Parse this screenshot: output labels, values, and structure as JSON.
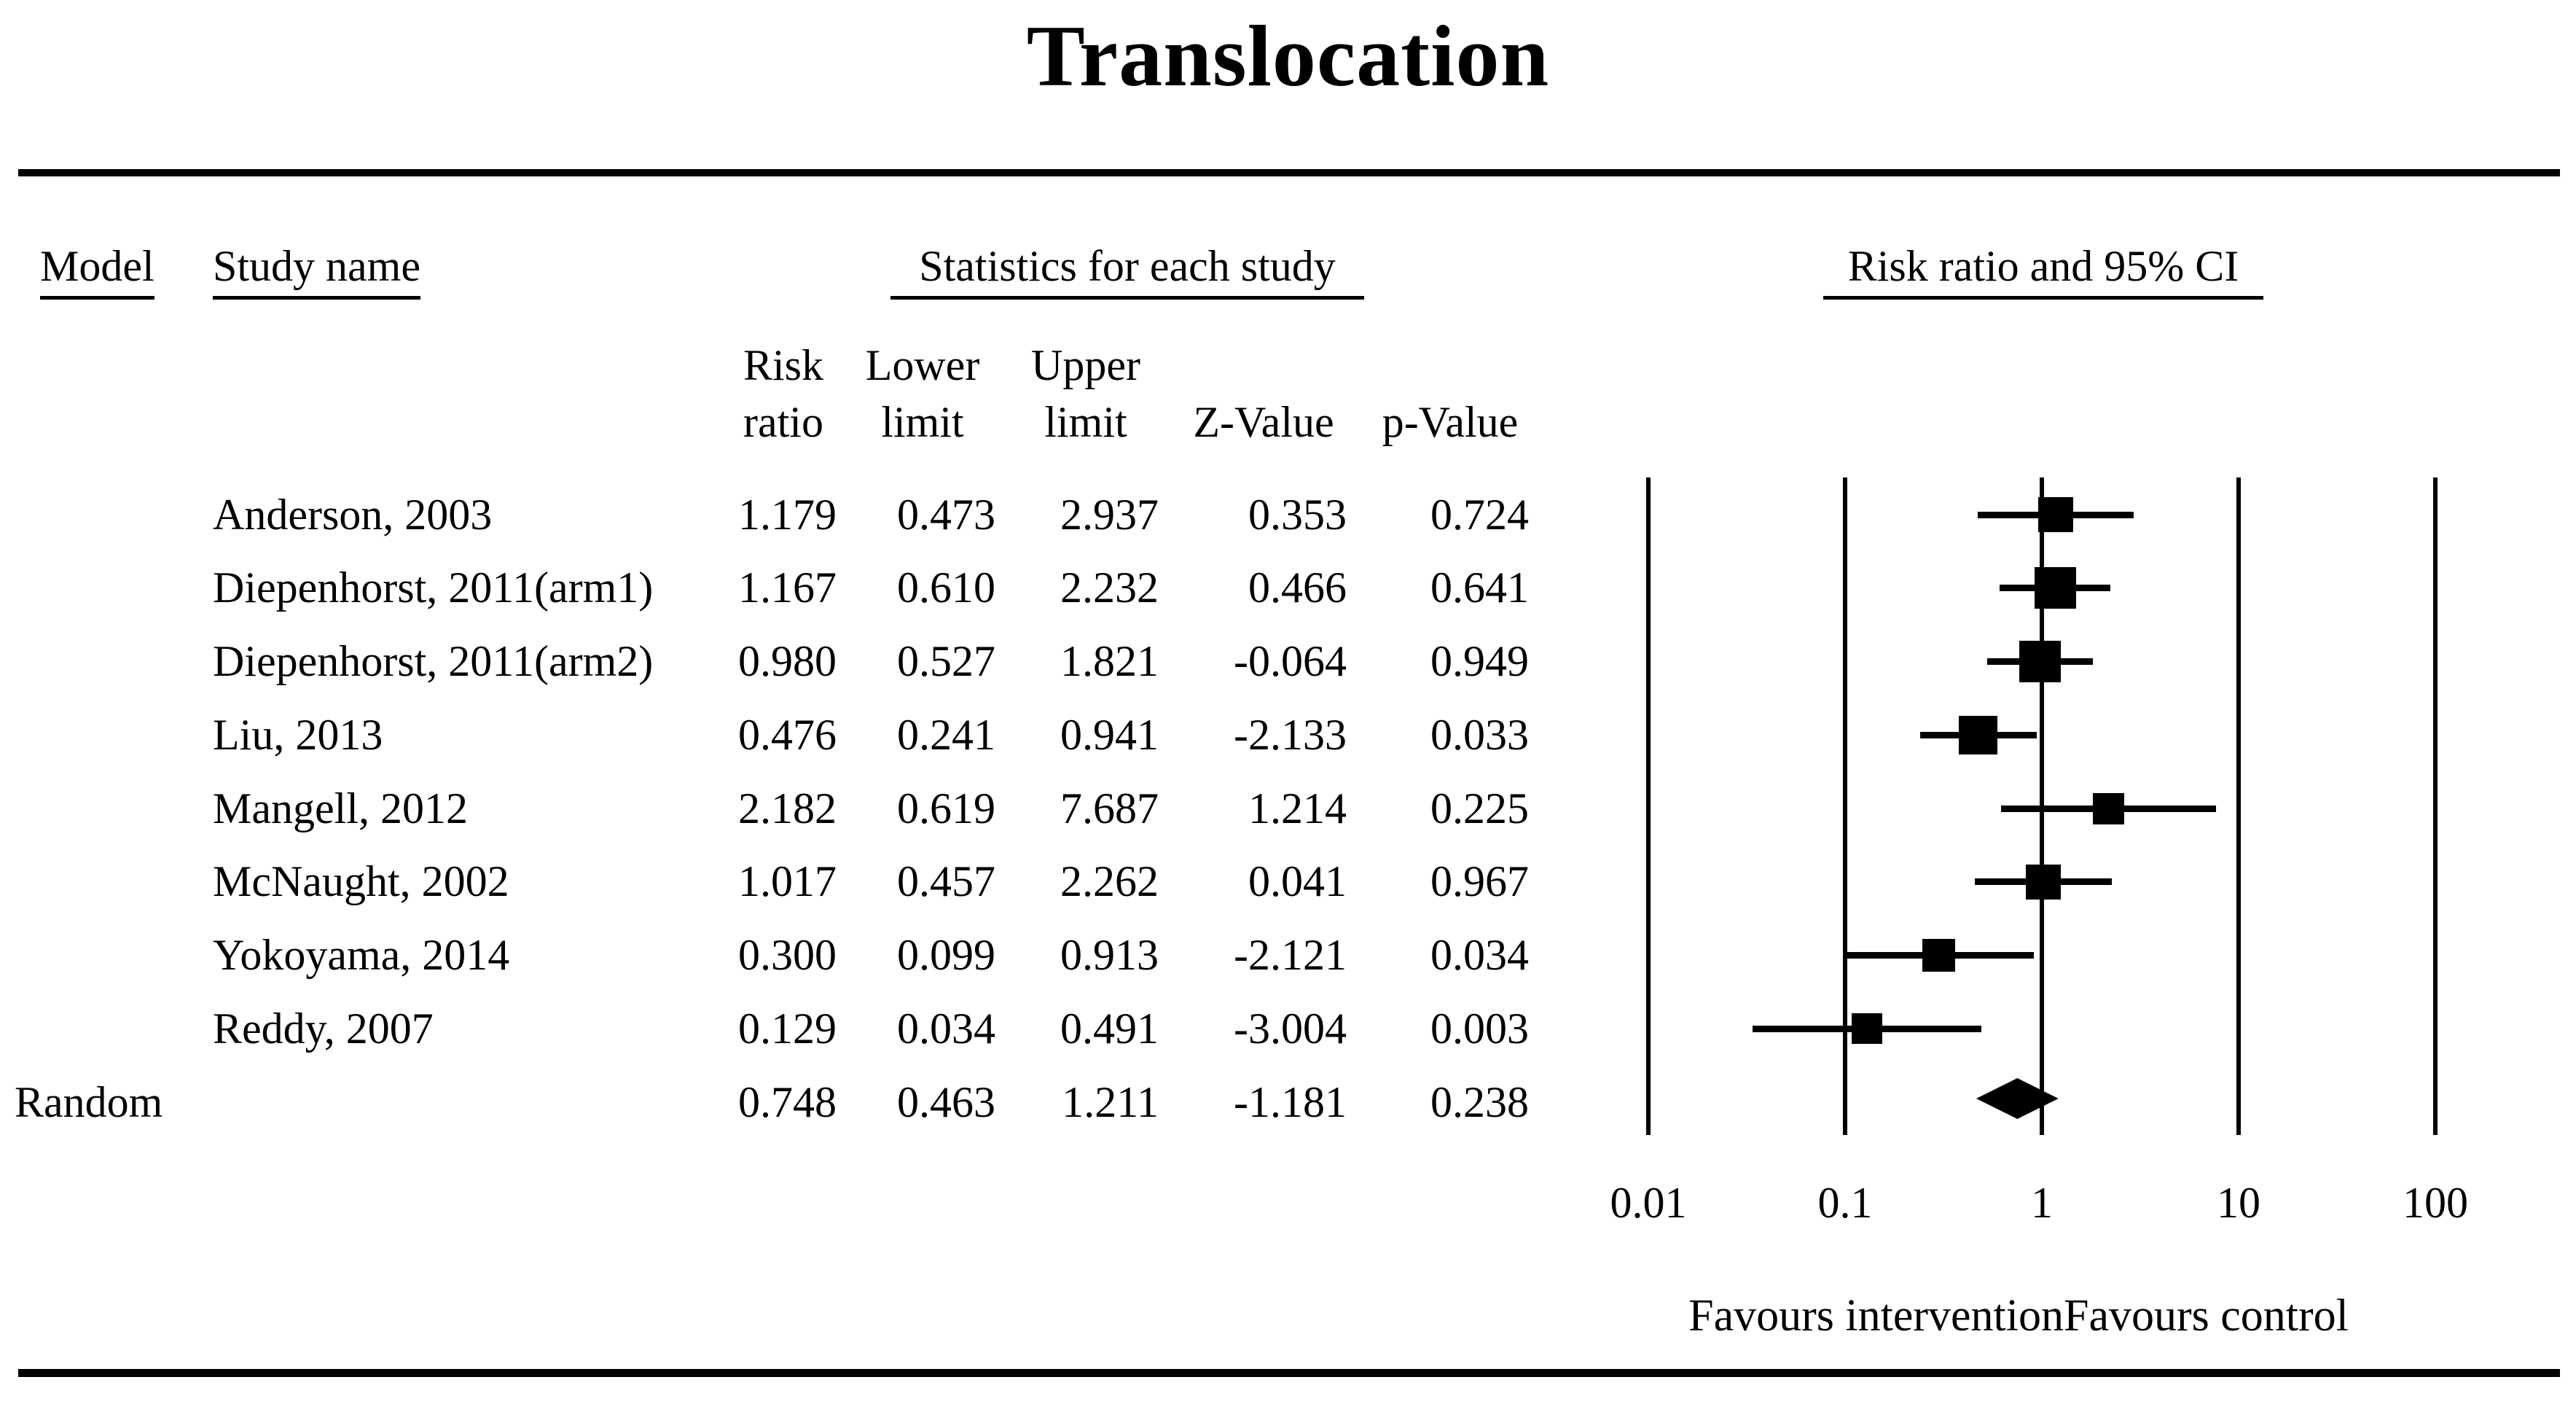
{
  "figure": {
    "headers": {
      "model": "Model",
      "study_name": "Study name",
      "stats_group": "Statistics for each study",
      "plot_group": "Risk ratio and 95% CI",
      "risk_line1": "Risk",
      "risk_line2": "ratio",
      "lower_line1": "Lower",
      "lower_line2": "limit",
      "upper_line1": "Upper",
      "upper_line2": "limit",
      "z_value": "Z-Value",
      "p_value": "p-Value"
    }
  },
  "chart_data": {
    "type": "forest",
    "title": "Translocation",
    "x_axis": {
      "scale": "log10",
      "range": [
        0.01,
        100
      ],
      "ticks": [
        0.01,
        0.1,
        1,
        10,
        100
      ],
      "tick_labels": [
        "0.01",
        "0.1",
        "1",
        "10",
        "100"
      ]
    },
    "columns": [
      "Risk ratio",
      "Lower limit",
      "Upper limit",
      "Z-Value",
      "p-Value"
    ],
    "studies": [
      {
        "name": "Anderson, 2003",
        "risk_ratio": 1.179,
        "lower_limit": 0.473,
        "upper_limit": 2.937,
        "z_value": 0.353,
        "p_value": 0.724,
        "marker_size": 48
      },
      {
        "name": "Diepenhorst, 2011(arm1)",
        "risk_ratio": 1.167,
        "lower_limit": 0.61,
        "upper_limit": 2.232,
        "z_value": 0.466,
        "p_value": 0.641,
        "marker_size": 57
      },
      {
        "name": "Diepenhorst, 2011(arm2)",
        "risk_ratio": 0.98,
        "lower_limit": 0.527,
        "upper_limit": 1.821,
        "z_value": -0.064,
        "p_value": 0.949,
        "marker_size": 57
      },
      {
        "name": "Liu, 2013",
        "risk_ratio": 0.476,
        "lower_limit": 0.241,
        "upper_limit": 0.941,
        "z_value": -2.133,
        "p_value": 0.033,
        "marker_size": 53
      },
      {
        "name": "Mangell, 2012",
        "risk_ratio": 2.182,
        "lower_limit": 0.619,
        "upper_limit": 7.687,
        "z_value": 1.214,
        "p_value": 0.225,
        "marker_size": 43
      },
      {
        "name": "McNaught, 2002",
        "risk_ratio": 1.017,
        "lower_limit": 0.457,
        "upper_limit": 2.262,
        "z_value": 0.041,
        "p_value": 0.967,
        "marker_size": 48
      },
      {
        "name": "Yokoyama, 2014",
        "risk_ratio": 0.3,
        "lower_limit": 0.099,
        "upper_limit": 0.913,
        "z_value": -2.121,
        "p_value": 0.034,
        "marker_size": 45
      },
      {
        "name": "Reddy, 2007",
        "risk_ratio": 0.129,
        "lower_limit": 0.034,
        "upper_limit": 0.491,
        "z_value": -3.004,
        "p_value": 0.003,
        "marker_size": 42
      }
    ],
    "summary": {
      "model": "Random",
      "risk_ratio": 0.748,
      "lower_limit": 0.463,
      "upper_limit": 1.211,
      "z_value": -1.181,
      "p_value": 0.238
    },
    "footer": {
      "favours_left": "Favours intervention",
      "favours_right": "Favours control"
    },
    "colors": {
      "ink": "#000000",
      "background": "#ffffff"
    }
  }
}
